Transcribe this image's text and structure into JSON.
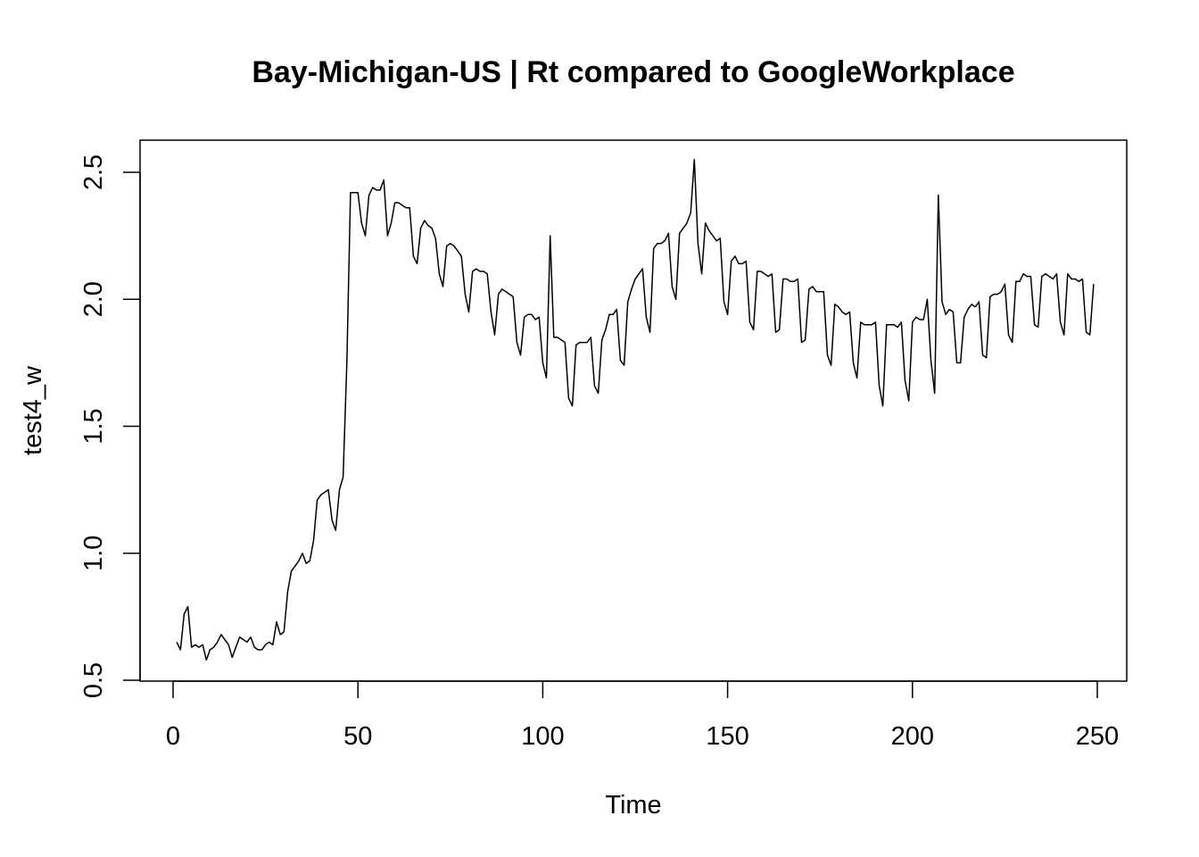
{
  "chart_data": {
    "type": "line",
    "title": "Bay-Michigan-US | Rt compared to GoogleWorkplace",
    "xlabel": "Time",
    "ylabel": "test4_w",
    "xlim": [
      1,
      248
    ],
    "ylim": [
      0.5,
      2.55
    ],
    "xticks": [
      0,
      50,
      100,
      150,
      200,
      250
    ],
    "yticks": [
      0.5,
      1.0,
      1.5,
      2.0,
      2.5
    ],
    "xtick_labels": [
      "0",
      "50",
      "100",
      "150",
      "200",
      "250"
    ],
    "ytick_labels": [
      "0.5",
      "1.0",
      "1.5",
      "2.0",
      "2.5"
    ],
    "grid": false,
    "legend": "none",
    "line_color": "#000000",
    "series": [
      {
        "x_start": 1,
        "values": [
          0.65,
          0.62,
          0.76,
          0.79,
          0.63,
          0.64,
          0.63,
          0.64,
          0.58,
          0.62,
          0.63,
          0.65,
          0.68,
          0.66,
          0.64,
          0.59,
          0.63,
          0.67,
          0.66,
          0.65,
          0.67,
          0.63,
          0.62,
          0.62,
          0.64,
          0.65,
          0.64,
          0.73,
          0.68,
          0.69,
          0.85,
          0.93,
          0.95,
          0.97,
          1.0,
          0.96,
          0.97,
          1.05,
          1.21,
          1.23,
          1.24,
          1.25,
          1.13,
          1.09,
          1.25,
          1.3,
          1.75,
          2.42,
          2.42,
          2.42,
          2.3,
          2.25,
          2.41,
          2.44,
          2.43,
          2.43,
          2.47,
          2.25,
          2.3,
          2.38,
          2.38,
          2.37,
          2.36,
          2.36,
          2.17,
          2.14,
          2.28,
          2.31,
          2.29,
          2.28,
          2.24,
          2.1,
          2.05,
          2.21,
          2.22,
          2.21,
          2.19,
          2.17,
          2.02,
          1.95,
          2.11,
          2.12,
          2.11,
          2.11,
          2.1,
          1.95,
          1.86,
          2.02,
          2.04,
          2.03,
          2.02,
          2.01,
          1.83,
          1.78,
          1.93,
          1.94,
          1.94,
          1.92,
          1.93,
          1.75,
          1.69,
          2.25,
          1.85,
          1.85,
          1.84,
          1.83,
          1.61,
          1.58,
          1.82,
          1.83,
          1.83,
          1.83,
          1.85,
          1.66,
          1.63,
          1.84,
          1.88,
          1.94,
          1.94,
          1.96,
          1.76,
          1.74,
          1.99,
          2.04,
          2.08,
          2.1,
          2.12,
          1.93,
          1.87,
          2.2,
          2.22,
          2.22,
          2.23,
          2.26,
          2.05,
          2.0,
          2.26,
          2.28,
          2.3,
          2.34,
          2.55,
          2.22,
          2.1,
          2.3,
          2.27,
          2.25,
          2.23,
          2.24,
          1.99,
          1.94,
          2.15,
          2.17,
          2.14,
          2.14,
          2.15,
          1.91,
          1.88,
          2.11,
          2.11,
          2.1,
          2.09,
          2.1,
          1.87,
          1.88,
          2.08,
          2.08,
          2.07,
          2.07,
          2.08,
          1.83,
          1.84,
          2.04,
          2.05,
          2.03,
          2.03,
          2.03,
          1.78,
          1.74,
          1.98,
          1.97,
          1.95,
          1.94,
          1.95,
          1.75,
          1.69,
          1.91,
          1.9,
          1.9,
          1.9,
          1.91,
          1.66,
          1.58,
          1.9,
          1.9,
          1.9,
          1.89,
          1.91,
          1.68,
          1.6,
          1.91,
          1.93,
          1.92,
          1.92,
          2.0,
          1.76,
          1.63,
          2.41,
          1.99,
          1.94,
          1.96,
          1.95,
          1.75,
          1.75,
          1.93,
          1.96,
          1.98,
          1.97,
          1.99,
          1.78,
          1.77,
          2.01,
          2.02,
          2.02,
          2.03,
          2.06,
          1.86,
          1.83,
          2.07,
          2.07,
          2.1,
          2.09,
          2.09,
          1.9,
          1.89,
          2.09,
          2.1,
          2.09,
          2.08,
          2.1,
          1.91,
          1.86,
          2.1,
          2.08,
          2.08,
          2.07,
          2.08,
          1.87,
          1.86,
          2.06
        ]
      }
    ]
  }
}
